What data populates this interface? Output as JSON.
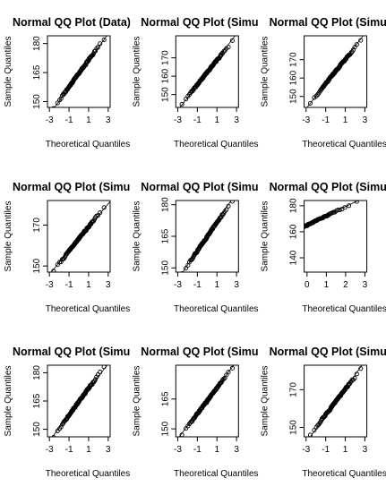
{
  "chart_data": [
    {
      "type": "scatter",
      "title": "Normal QQ Plot (Data)",
      "xlabel": "Theoretical Quantiles",
      "ylabel": "Sample Quantiles",
      "xticks": [
        -3,
        -1,
        1,
        3
      ],
      "yticks": [
        150,
        165,
        180
      ],
      "xlim": [
        -3.2,
        3.2
      ],
      "ylim": [
        147,
        184
      ],
      "grid": false,
      "reference_line": true,
      "n": 100,
      "mean": 164.5,
      "sd": 6.9,
      "seed": 11
    },
    {
      "type": "scatter",
      "title": "Normal QQ Plot (Simulated)",
      "xlabel": "Theoretical Quantiles",
      "ylabel": "Sample Quantiles",
      "xticks": [
        -3,
        -1,
        1,
        3
      ],
      "yticks": [
        150,
        160,
        170
      ],
      "xlim": [
        -3.2,
        3.2
      ],
      "ylim": [
        143,
        182
      ],
      "grid": false,
      "reference_line": true,
      "n": 100,
      "mean": 162.0,
      "sd": 6.6,
      "seed": 23
    },
    {
      "type": "scatter",
      "title": "Normal QQ Plot (Simulated)",
      "xlabel": "Theoretical Quantiles",
      "ylabel": "Sample Quantiles",
      "xticks": [
        -3,
        -1,
        1,
        3
      ],
      "yticks": [
        150,
        160,
        170
      ],
      "xlim": [
        -3.2,
        3.2
      ],
      "ylim": [
        144,
        183
      ],
      "grid": false,
      "reference_line": true,
      "n": 100,
      "mean": 163.5,
      "sd": 6.6,
      "seed": 37
    },
    {
      "type": "scatter",
      "title": "Normal QQ Plot (Simulated)",
      "xlabel": "Theoretical Quantiles",
      "ylabel": "Sample Quantiles",
      "xticks": [
        -3,
        -1,
        1,
        3
      ],
      "yticks": [
        150,
        170
      ],
      "xlim": [
        -3.2,
        3.2
      ],
      "ylim": [
        147,
        182
      ],
      "grid": false,
      "reference_line": true,
      "n": 100,
      "mean": 163.2,
      "sd": 6.0,
      "seed": 41
    },
    {
      "type": "scatter",
      "title": "Normal QQ Plot (Simulated)",
      "xlabel": "Theoretical Quantiles",
      "ylabel": "Sample Quantiles",
      "xticks": [
        -3,
        -1,
        1,
        3
      ],
      "yticks": [
        150,
        165,
        180
      ],
      "xlim": [
        -3.2,
        3.2
      ],
      "ylim": [
        148,
        182
      ],
      "grid": false,
      "reference_line": true,
      "n": 100,
      "mean": 164.8,
      "sd": 6.7,
      "seed": 53
    },
    {
      "type": "scatter",
      "title": "Normal QQ Plot (Simulated)",
      "xlabel": "Theoretical Quantiles",
      "ylabel": "Sample Quantiles",
      "xticks": [
        0,
        1,
        2,
        3
      ],
      "yticks": [
        140,
        160,
        180
      ],
      "xlim": [
        -0.15,
        3.1
      ],
      "ylim": [
        129,
        184
      ],
      "grid": false,
      "reference_line": true,
      "n": 100,
      "mean": 165.0,
      "sd": 7.0,
      "seed": 67
    },
    {
      "type": "scatter",
      "title": "Normal QQ Plot (Simulated)",
      "xlabel": "Theoretical Quantiles",
      "ylabel": "Sample Quantiles",
      "xticks": [
        -3,
        -1,
        1,
        3
      ],
      "yticks": [
        150,
        165,
        180
      ],
      "xlim": [
        -3.2,
        3.2
      ],
      "ylim": [
        146,
        184
      ],
      "grid": false,
      "reference_line": true,
      "n": 100,
      "mean": 164.5,
      "sd": 7.2,
      "seed": 71
    },
    {
      "type": "scatter",
      "title": "Normal QQ Plot (Simulated)",
      "xlabel": "Theoretical Quantiles",
      "ylabel": "Sample Quantiles",
      "xticks": [
        -3,
        -1,
        1,
        3
      ],
      "yticks": [
        150,
        165
      ],
      "xlim": [
        -3.2,
        3.2
      ],
      "ylim": [
        146,
        182
      ],
      "grid": false,
      "reference_line": true,
      "n": 100,
      "mean": 164.0,
      "sd": 6.5,
      "seed": 83
    },
    {
      "type": "scatter",
      "title": "Normal QQ Plot (Simulated)",
      "xlabel": "Theoretical Quantiles",
      "ylabel": "Sample Quantiles",
      "xticks": [
        -3,
        -1,
        1,
        3
      ],
      "yticks": [
        150,
        170
      ],
      "xlim": [
        -3.2,
        3.2
      ],
      "ylim": [
        145,
        183
      ],
      "grid": false,
      "reference_line": true,
      "n": 100,
      "mean": 163.5,
      "sd": 6.7,
      "seed": 97
    }
  ]
}
